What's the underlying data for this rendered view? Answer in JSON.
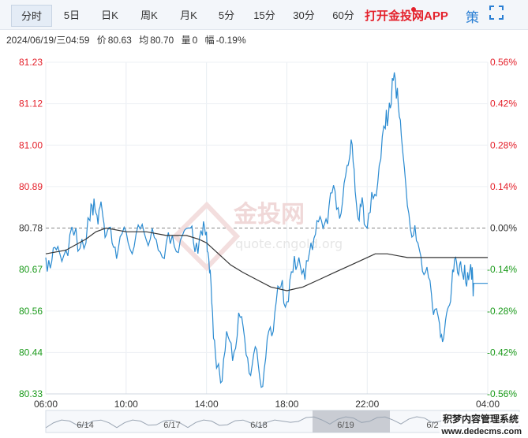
{
  "toolbar": {
    "tabs": [
      {
        "label": "分时",
        "active": true
      },
      {
        "label": "5日"
      },
      {
        "label": "日K"
      },
      {
        "label": "周K"
      },
      {
        "label": "月K"
      },
      {
        "label": "5分"
      },
      {
        "label": "15分"
      },
      {
        "label": "30分"
      },
      {
        "label": "60分"
      }
    ],
    "promo": "打开金投网APP",
    "strategy_icon": "策",
    "fullscreen_icon": "fullscreen-icon"
  },
  "info": {
    "datetime": "2024/06/19/三04:59",
    "price_label": "价",
    "price": "80.63",
    "avg_label": "均",
    "avg": "80.70",
    "volume_label": "量",
    "volume": "0",
    "change_label": "幅",
    "change": "-0.19%"
  },
  "watermark": {
    "brand": "金投网",
    "url": "quote.cngold.org"
  },
  "site_footer": {
    "line1": "积梦内容管理系统",
    "line2": "www.dedecms.com"
  },
  "colors": {
    "up": "#e4212b",
    "down": "#1a9a1a",
    "price_line": "#2b8bd1",
    "avg_line": "#333333",
    "ref_line": "#888888"
  },
  "chart_data": {
    "type": "line",
    "y_ticks": [
      "81.23",
      "81.12",
      "81.00",
      "80.89",
      "80.78",
      "80.67",
      "80.56",
      "80.44",
      "80.33"
    ],
    "pct_ticks": [
      "0.56%",
      "0.42%",
      "0.28%",
      "0.14%",
      "0.00%",
      "-0.14%",
      "-0.28%",
      "-0.42%",
      "-0.56%"
    ],
    "ylim": [
      80.33,
      81.23
    ],
    "reference_value": 80.78,
    "x_ticks": [
      "06:00",
      "10:00",
      "14:00",
      "18:00",
      "22:00",
      "04:00"
    ],
    "x_tick_hours": [
      0,
      4,
      8,
      12,
      16,
      22
    ],
    "xlim_hours": [
      0,
      22
    ],
    "date_labels": [
      "6/14",
      "6/17",
      "6/18",
      "6/19",
      "6/2"
    ],
    "price_series": {
      "name": "价",
      "hours": [
        0,
        0.3,
        0.6,
        1,
        1.4,
        1.8,
        2.2,
        2.4,
        2.6,
        2.8,
        3.0,
        3.3,
        3.6,
        4,
        4.4,
        4.8,
        5.2,
        5.6,
        6,
        6.4,
        6.8,
        7.2,
        7.5,
        7.8,
        8.0,
        8.15,
        8.3,
        8.5,
        8.7,
        9.0,
        9.3,
        9.6,
        9.9,
        10.2,
        10.5,
        10.8,
        11.1,
        11.4,
        11.7,
        12.0,
        12.3,
        12.6,
        12.9,
        13.2,
        13.5,
        13.8,
        14.1,
        14.4,
        14.7,
        15.0,
        15.2,
        15.4,
        15.6,
        15.8,
        16.0,
        16.3,
        16.6,
        16.9,
        17.1,
        17.3,
        17.5,
        17.7,
        18.0,
        18.3,
        18.6,
        18.9,
        19.2,
        19.4,
        19.6,
        19.8,
        20.0,
        20.2,
        20.4,
        20.6,
        20.8,
        21.0,
        21.2,
        21.3,
        22.0
      ],
      "values": [
        80.7,
        80.69,
        80.73,
        80.72,
        80.76,
        80.75,
        80.8,
        80.86,
        80.79,
        80.83,
        80.76,
        80.74,
        80.72,
        80.77,
        80.73,
        80.79,
        80.75,
        80.72,
        80.74,
        80.73,
        80.76,
        80.78,
        80.74,
        80.76,
        80.77,
        80.66,
        80.55,
        80.4,
        80.36,
        80.5,
        80.42,
        80.55,
        80.48,
        80.38,
        80.45,
        80.35,
        80.5,
        80.55,
        80.62,
        80.58,
        80.66,
        80.7,
        80.64,
        80.74,
        80.8,
        80.78,
        80.84,
        80.88,
        80.82,
        80.95,
        81.02,
        80.88,
        80.8,
        80.84,
        80.78,
        80.86,
        80.95,
        81.05,
        81.12,
        81.18,
        81.16,
        81.03,
        80.84,
        80.76,
        80.72,
        80.66,
        80.6,
        80.56,
        80.52,
        80.48,
        80.56,
        80.62,
        80.7,
        80.68,
        80.64,
        80.66,
        80.64,
        80.63,
        80.63
      ]
    },
    "avg_series": {
      "name": "均",
      "hours": [
        0,
        1,
        2,
        2.5,
        3,
        4,
        5,
        6,
        7,
        7.6,
        8.0,
        8.4,
        8.8,
        9.2,
        9.8,
        10.5,
        11.2,
        12.0,
        12.8,
        13.6,
        14.4,
        15.2,
        16.0,
        16.4,
        17.0,
        18.0,
        19.0,
        20.0,
        21.0,
        22.0
      ],
      "values": [
        80.71,
        80.72,
        80.75,
        80.77,
        80.78,
        80.77,
        80.77,
        80.76,
        80.76,
        80.75,
        80.74,
        80.72,
        80.7,
        80.68,
        80.66,
        80.64,
        80.62,
        80.61,
        80.62,
        80.64,
        80.66,
        80.68,
        80.7,
        80.71,
        80.71,
        80.7,
        80.7,
        80.7,
        80.7,
        80.7
      ]
    }
  }
}
